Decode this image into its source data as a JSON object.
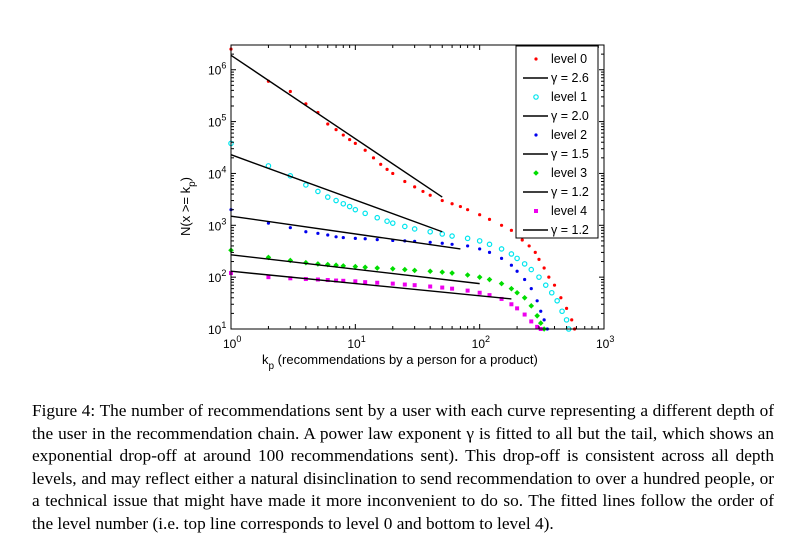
{
  "caption": {
    "label": "Figure 4:",
    "text": "The number of recommendations sent by a user with each curve representing a different depth of the user in the recommendation chain. A power law exponent γ is fitted to all but the tail, which shows an exponential drop-off at around 100 recommendations sent). This drop-off is consistent across all depth levels, and may reflect either a natural disinclination to send recommendation to over a hundred people, or a technical issue that might have made it more inconvenient to do so. The fitted lines follow the order of the level number (i.e. top line corresponds to level 0 and bottom to level 4)."
  },
  "chart_data": {
    "type": "scatter",
    "xscale": "log",
    "yscale": "log",
    "xlim": [
      1,
      1000
    ],
    "ylim": [
      10,
      3000000
    ],
    "xlabel_main": "k",
    "xlabel_sub": "p",
    "xlabel_rest": " (recommendations by a person for a product)",
    "ylabel_main": "N(x >= k",
    "ylabel_sub": "p",
    "ylabel_close": ")",
    "xticks": [
      {
        "value": 1,
        "base": "10",
        "exp": "0"
      },
      {
        "value": 10,
        "base": "10",
        "exp": "1"
      },
      {
        "value": 100,
        "base": "10",
        "exp": "2"
      },
      {
        "value": 1000,
        "base": "10",
        "exp": "3"
      }
    ],
    "yticks": [
      {
        "value": 10,
        "base": "10",
        "exp": "1"
      },
      {
        "value": 100,
        "base": "10",
        "exp": "2"
      },
      {
        "value": 1000,
        "base": "10",
        "exp": "3"
      },
      {
        "value": 10000,
        "base": "10",
        "exp": "4"
      },
      {
        "value": 100000,
        "base": "10",
        "exp": "5"
      },
      {
        "value": 1000000,
        "base": "10",
        "exp": "6"
      }
    ],
    "legend_position": "top-right",
    "series": [
      {
        "name": "level 0",
        "marker": "dot",
        "color": "#ff0000",
        "x": [
          1,
          2,
          3,
          4,
          5,
          6,
          7,
          8,
          9,
          10,
          12,
          14,
          16,
          18,
          20,
          25,
          30,
          35,
          40,
          50,
          60,
          70,
          80,
          100,
          120,
          150,
          180,
          200,
          220,
          250,
          280,
          300,
          330,
          360,
          400,
          450,
          500,
          550,
          580
        ],
        "y": [
          2500000,
          600000,
          380000,
          220000,
          150000,
          90000,
          70000,
          55000,
          45000,
          38000,
          28000,
          20000,
          15000,
          12000,
          10000,
          7000,
          5500,
          4500,
          3800,
          3000,
          2600,
          2300,
          2000,
          1600,
          1300,
          1000,
          800,
          650,
          520,
          400,
          300,
          220,
          150,
          100,
          70,
          40,
          25,
          15,
          10
        ]
      },
      {
        "name": "γ = 2.6",
        "type": "fit",
        "color": "#000000",
        "x": [
          1,
          50
        ],
        "y": [
          1900000,
          3500
        ]
      },
      {
        "name": "level 1",
        "marker": "circle",
        "color": "#00e5ee",
        "x": [
          1,
          2,
          3,
          4,
          5,
          6,
          7,
          8,
          9,
          10,
          12,
          15,
          18,
          20,
          25,
          30,
          40,
          50,
          60,
          80,
          100,
          120,
          150,
          180,
          200,
          230,
          260,
          300,
          340,
          380,
          420,
          460,
          500,
          520
        ],
        "y": [
          38000,
          14000,
          9000,
          6000,
          4500,
          3500,
          3000,
          2600,
          2300,
          2000,
          1700,
          1400,
          1200,
          1100,
          950,
          850,
          750,
          680,
          620,
          560,
          500,
          430,
          350,
          280,
          230,
          180,
          140,
          100,
          70,
          50,
          35,
          22,
          15,
          10
        ]
      },
      {
        "name": "γ = 2.0",
        "type": "fit",
        "color": "#000000",
        "x": [
          1,
          50
        ],
        "y": [
          23000,
          750
        ]
      },
      {
        "name": "level 2",
        "marker": "dot",
        "color": "#0000ee",
        "x": [
          1,
          2,
          3,
          4,
          5,
          6,
          7,
          8,
          10,
          12,
          15,
          20,
          25,
          30,
          40,
          50,
          60,
          80,
          100,
          120,
          150,
          180,
          200,
          230,
          260,
          290,
          310,
          330,
          350
        ],
        "y": [
          2000,
          1100,
          900,
          750,
          700,
          650,
          600,
          580,
          560,
          550,
          530,
          510,
          500,
          490,
          470,
          450,
          430,
          400,
          350,
          300,
          230,
          170,
          130,
          90,
          60,
          35,
          22,
          15,
          10
        ]
      },
      {
        "name": "γ = 1.5",
        "type": "fit",
        "color": "#000000",
        "x": [
          1,
          70
        ],
        "y": [
          1500,
          350
        ]
      },
      {
        "name": "level 3",
        "marker": "diamond",
        "color": "#00dd00",
        "x": [
          1,
          2,
          3,
          4,
          5,
          6,
          7,
          8,
          10,
          12,
          15,
          20,
          25,
          30,
          40,
          50,
          60,
          80,
          100,
          120,
          150,
          180,
          200,
          230,
          260,
          290,
          310,
          330
        ],
        "y": [
          330,
          240,
          210,
          190,
          180,
          175,
          170,
          165,
          160,
          155,
          150,
          145,
          140,
          135,
          130,
          125,
          120,
          110,
          100,
          90,
          75,
          60,
          50,
          40,
          28,
          18,
          13,
          10
        ]
      },
      {
        "name": "γ = 1.2",
        "type": "fit",
        "color": "#000000",
        "x": [
          1,
          100
        ],
        "y": [
          270,
          75
        ]
      },
      {
        "name": "level 4",
        "marker": "square",
        "color": "#ee00ee",
        "x": [
          1,
          2,
          3,
          4,
          5,
          6,
          7,
          8,
          10,
          12,
          15,
          20,
          25,
          30,
          40,
          50,
          60,
          80,
          100,
          120,
          150,
          180,
          200,
          230,
          260,
          290,
          310
        ],
        "y": [
          120,
          100,
          95,
          92,
          90,
          88,
          86,
          85,
          83,
          80,
          78,
          75,
          72,
          70,
          66,
          63,
          60,
          55,
          50,
          45,
          38,
          30,
          25,
          19,
          14,
          11,
          10
        ]
      },
      {
        "name": "γ = 1.2",
        "type": "fit",
        "color": "#000000",
        "x": [
          1,
          180
        ],
        "y": [
          130,
          38
        ]
      }
    ]
  }
}
